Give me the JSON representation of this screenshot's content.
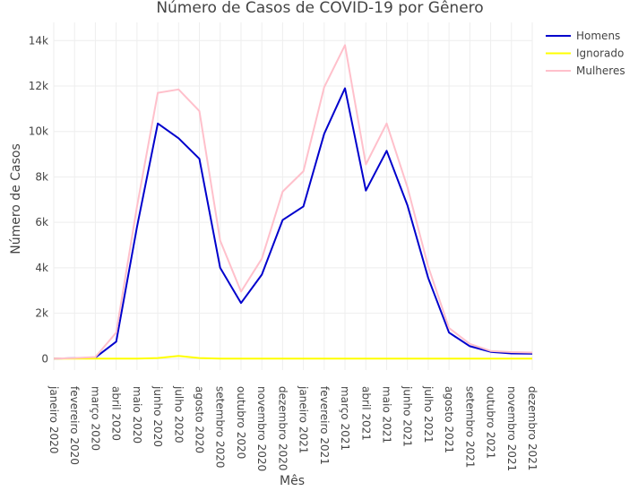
{
  "chart_data": {
    "type": "line",
    "title": "Número de Casos de COVID-19 por Gênero",
    "xlabel": "Mês",
    "ylabel": "Número de Casos",
    "categories": [
      "janeiro 2020",
      "fevereiro 2020",
      "março 2020",
      "abril 2020",
      "maio 2020",
      "junho 2020",
      "julho 2020",
      "agosto 2020",
      "setembro 2020",
      "outubro 2020",
      "novembro 2020",
      "dezembro 2020",
      "janeiro 2021",
      "fevereiro 2021",
      "março 2021",
      "abril 2021",
      "maio 2021",
      "junho 2021",
      "julho 2021",
      "agosto 2021",
      "setembro 2021",
      "outubro 2021",
      "novembro 2021",
      "dezembro 2021"
    ],
    "ylim": [
      -500,
      14800
    ],
    "yticks": [
      0,
      2000,
      4000,
      6000,
      8000,
      10000,
      12000,
      14000
    ],
    "ytick_labels": [
      "0",
      "2k",
      "4k",
      "6k",
      "8k",
      "10k",
      "12k",
      "14k"
    ],
    "grid": true,
    "legend_position": "top-right",
    "series": [
      {
        "name": "Homens",
        "color": "#0000cc",
        "values": [
          0,
          20,
          50,
          750,
          5800,
          10350,
          9700,
          8800,
          4000,
          2450,
          3700,
          6100,
          6700,
          9900,
          11900,
          7400,
          9150,
          6750,
          3550,
          1150,
          550,
          300,
          230,
          220
        ]
      },
      {
        "name": "Ignorado",
        "color": "#ffff00",
        "values": [
          0,
          0,
          0,
          0,
          0,
          30,
          120,
          30,
          0,
          0,
          0,
          0,
          0,
          0,
          0,
          0,
          0,
          0,
          0,
          0,
          0,
          0,
          0,
          0
        ]
      },
      {
        "name": "Mulheres",
        "color": "#ffc0cb",
        "values": [
          0,
          30,
          70,
          1150,
          6700,
          11700,
          11850,
          10900,
          5200,
          2950,
          4400,
          7350,
          8250,
          11950,
          13800,
          8550,
          10350,
          7550,
          4050,
          1350,
          650,
          340,
          290,
          270
        ]
      }
    ]
  }
}
